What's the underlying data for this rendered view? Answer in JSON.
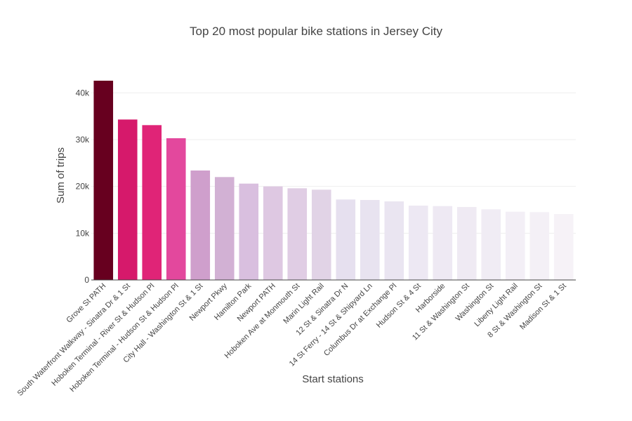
{
  "chart_data": {
    "type": "bar",
    "title": "Top 20 most popular bike stations in Jersey City",
    "xlabel": "Start stations",
    "ylabel": "Sum of trips",
    "ylim": [
      0,
      42600
    ],
    "y_ticks": [
      0,
      10000,
      20000,
      30000,
      40000
    ],
    "y_tick_labels": [
      "0",
      "10k",
      "20k",
      "30k",
      "40k"
    ],
    "grid": true,
    "categories": [
      "Grove St PATH",
      "South Waterfront Walkway - Sinatra Dr & 1 St",
      "Hoboken Terminal - River St & Hudson Pl",
      "Hoboken Terminal - Hudson St & Hudson Pl",
      "City Hall - Washington St & 1 St",
      "Newport Pkwy",
      "Hamilton Park",
      "Newport PATH",
      "Hoboken Ave at Monmouth St",
      "Marin Light Rail",
      "12 St & Sinatra Dr N",
      "14 St Ferry - 14 St & Shipyard Ln",
      "Columbus Dr at Exchange Pl",
      "Hudson St & 4 St",
      "Harborside",
      "11 St & Washington St",
      "Washington St",
      "Liberty Light Rail",
      "8 St & Washington St",
      "Madison St & 1 St"
    ],
    "values": [
      42600,
      34300,
      33100,
      30300,
      23400,
      22000,
      20600,
      20000,
      19600,
      19300,
      17200,
      17100,
      16800,
      15900,
      15800,
      15600,
      15100,
      14600,
      14500,
      14100
    ],
    "colors": [
      "#67001f",
      "#d6196b",
      "#e02477",
      "#e3489d",
      "#cf9fcc",
      "#d2b1d4",
      "#d9bfdf",
      "#dec8e2",
      "#e0cde4",
      "#e1d3e6",
      "#e6e0ef",
      "#e8e3f0",
      "#eae5f1",
      "#ede8f3",
      "#eee9f3",
      "#efeaf3",
      "#f0ecf4",
      "#f3eff6",
      "#f4f0f6",
      "#f6f2f7"
    ]
  }
}
